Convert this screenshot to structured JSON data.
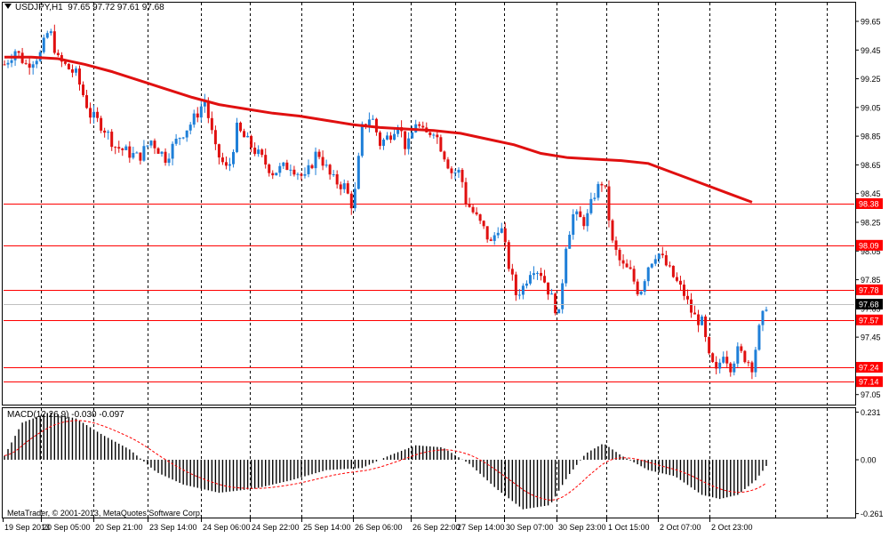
{
  "window": {
    "symbol_label": "USDJPY,H1",
    "ohlc_label": "97.65 97.72 97.61 97.68",
    "macd_label": "MACD(12,26,9) -0.030 -0.097",
    "copyright": "MetaTrader, © 2001-2013, MetaQuotes Software Corp."
  },
  "chart_data": [
    {
      "type": "candlestick",
      "title": "USDJPY,H1",
      "ylim": [
        96.98,
        99.78
      ],
      "price_ticks": [
        "99.65",
        "99.45",
        "99.25",
        "99.05",
        "98.85",
        "98.65",
        "98.45",
        "98.25",
        "98.05",
        "97.85",
        "97.65",
        "97.45",
        "97.25",
        "97.05"
      ],
      "time_labels": [
        "19 Sep 2013",
        "20 Sep 05:00",
        "20 Sep 21:00",
        "23 Sep 14:00",
        "24 Sep 06:00",
        "24 Sep 22:00",
        "25 Sep 14:00",
        "26 Sep 06:00",
        "26 Sep 22:00",
        "27 Sep 14:00",
        "30 Sep 07:00",
        "30 Sep 23:00",
        "1 Oct 15:00",
        "2 Oct 07:00",
        "2 Oct 23:00"
      ],
      "horizontal_levels": [
        {
          "value": 98.38,
          "label": "98.38",
          "color": "#ff0000"
        },
        {
          "value": 98.09,
          "label": "98.09",
          "color": "#ff0000"
        },
        {
          "value": 97.78,
          "label": "97.78",
          "color": "#ff0000"
        },
        {
          "value": 97.57,
          "label": "97.57",
          "color": "#ff0000"
        },
        {
          "value": 97.24,
          "label": "97.24",
          "color": "#ff0000"
        },
        {
          "value": 97.14,
          "label": "97.14",
          "color": "#ff0000"
        }
      ],
      "current_price": {
        "value": 97.68,
        "label": "97.68"
      },
      "moving_average": {
        "color": "#e01010",
        "points": [
          [
            0,
            99.4
          ],
          [
            15,
            99.4
          ],
          [
            30,
            99.39
          ],
          [
            45,
            99.35
          ],
          [
            60,
            99.3
          ],
          [
            75,
            99.24
          ],
          [
            90,
            99.18
          ],
          [
            105,
            99.12
          ],
          [
            120,
            99.07
          ],
          [
            135,
            99.04
          ],
          [
            150,
            99.01
          ],
          [
            165,
            98.99
          ],
          [
            180,
            98.96
          ],
          [
            195,
            98.93
          ],
          [
            210,
            98.91
          ],
          [
            225,
            98.9
          ],
          [
            240,
            98.89
          ],
          [
            255,
            98.87
          ],
          [
            270,
            98.83
          ],
          [
            285,
            98.79
          ],
          [
            300,
            98.73
          ],
          [
            315,
            98.7
          ],
          [
            330,
            98.69
          ],
          [
            345,
            98.68
          ],
          [
            360,
            98.66
          ],
          [
            375,
            98.59
          ],
          [
            390,
            98.52
          ],
          [
            405,
            98.45
          ],
          [
            418,
            98.39
          ]
        ]
      },
      "anchors": [
        [
          0,
          99.35
        ],
        [
          6,
          99.45
        ],
        [
          12,
          99.35
        ],
        [
          20,
          99.42
        ],
        [
          25,
          99.6
        ],
        [
          30,
          99.38
        ],
        [
          40,
          99.28
        ],
        [
          48,
          99.0
        ],
        [
          55,
          98.92
        ],
        [
          62,
          98.78
        ],
        [
          75,
          98.7
        ],
        [
          82,
          98.82
        ],
        [
          90,
          98.7
        ],
        [
          98,
          98.85
        ],
        [
          105,
          98.95
        ],
        [
          112,
          99.1
        ],
        [
          118,
          98.75
        ],
        [
          125,
          98.6
        ],
        [
          130,
          98.9
        ],
        [
          140,
          98.75
        ],
        [
          150,
          98.6
        ],
        [
          160,
          98.65
        ],
        [
          168,
          98.55
        ],
        [
          175,
          98.75
        ],
        [
          183,
          98.55
        ],
        [
          190,
          98.5
        ],
        [
          195,
          98.35
        ],
        [
          200,
          98.9
        ],
        [
          205,
          99.0
        ],
        [
          210,
          98.8
        ],
        [
          215,
          98.85
        ],
        [
          220,
          98.95
        ],
        [
          225,
          98.75
        ],
        [
          230,
          98.95
        ],
        [
          235,
          98.85
        ],
        [
          240,
          98.9
        ],
        [
          245,
          98.75
        ],
        [
          250,
          98.6
        ],
        [
          255,
          98.6
        ],
        [
          258,
          98.4
        ],
        [
          263,
          98.3
        ],
        [
          268,
          98.2
        ],
        [
          272,
          98.1
        ],
        [
          277,
          98.25
        ],
        [
          282,
          97.95
        ],
        [
          286,
          97.75
        ],
        [
          290,
          97.8
        ],
        [
          295,
          97.95
        ],
        [
          300,
          97.9
        ],
        [
          305,
          97.75
        ],
        [
          310,
          97.6
        ],
        [
          314,
          98.1
        ],
        [
          318,
          98.3
        ],
        [
          325,
          98.25
        ],
        [
          330,
          98.45
        ],
        [
          335,
          98.55
        ],
        [
          340,
          98.1
        ],
        [
          345,
          97.95
        ],
        [
          350,
          97.9
        ],
        [
          355,
          97.75
        ],
        [
          360,
          97.95
        ],
        [
          365,
          98.05
        ],
        [
          370,
          97.95
        ],
        [
          375,
          97.85
        ],
        [
          380,
          97.75
        ],
        [
          385,
          97.6
        ],
        [
          390,
          97.55
        ],
        [
          394,
          97.3
        ],
        [
          398,
          97.2
        ],
        [
          402,
          97.35
        ],
        [
          406,
          97.25
        ],
        [
          410,
          97.35
        ],
        [
          415,
          97.3
        ],
        [
          418,
          97.25
        ],
        [
          422,
          97.5
        ],
        [
          426,
          97.68
        ]
      ],
      "x_index_range": [
        0,
        426
      ]
    },
    {
      "type": "bar",
      "title": "MACD(12,26,9)",
      "values_main": -0.03,
      "values_signal": -0.097,
      "ylim": [
        -0.28,
        0.25
      ],
      "y_ticks": [
        "0.231",
        "0.00",
        "-0.261"
      ],
      "signal_color": "#ff0000",
      "histogram_color": "#000000"
    }
  ]
}
